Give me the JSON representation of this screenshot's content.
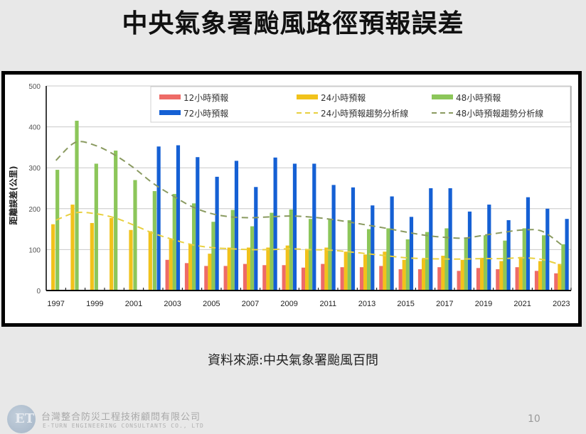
{
  "slide": {
    "title": "中央氣象署颱風路徑預報誤差",
    "source": "資料來源:中央氣象署颱風百問",
    "company_cn": "台灣整合防災工程技術顧問有限公司",
    "company_en": "E-TURN ENGINEERING CONSULTANTS CO., LTD",
    "page_number": "10",
    "logo_icon": "company-logo-icon"
  },
  "colors": {
    "h12": "#ee6b67",
    "h24": "#f1c21b",
    "h48": "#8cc65a",
    "h72": "#1560d4",
    "trend24": "#e8d040",
    "trend48": "#8a9a60"
  },
  "chart_data": {
    "type": "bar",
    "title": "",
    "xlabel": "",
    "ylabel": "距離誤差(公里)",
    "ylim": [
      0,
      500
    ],
    "yticks": [
      0,
      100,
      200,
      300,
      400,
      500
    ],
    "xtick_labels": [
      "1997",
      "1999",
      "2001",
      "2003",
      "2005",
      "2007",
      "2009",
      "2011",
      "2013",
      "2015",
      "2017",
      "2019",
      "2021",
      "2023"
    ],
    "grid": true,
    "legend_position": "top-right inside",
    "categories": [
      "1997",
      "1998",
      "1999",
      "2000",
      "2001",
      "2002",
      "2003",
      "2004",
      "2005",
      "2006",
      "2007",
      "2008",
      "2009",
      "2010",
      "2011",
      "2012",
      "2013",
      "2014",
      "2015",
      "2016",
      "2017",
      "2018",
      "2019",
      "2020",
      "2021",
      "2022",
      "2023"
    ],
    "series": [
      {
        "name": "12小時預報",
        "key": "h12",
        "type": "bar",
        "values": [
          null,
          null,
          null,
          null,
          null,
          null,
          75,
          67,
          60,
          60,
          65,
          62,
          62,
          56,
          65,
          57,
          57,
          60,
          52,
          52,
          57,
          48,
          55,
          52,
          57,
          48,
          42
        ]
      },
      {
        "name": "24小時預報",
        "key": "h24",
        "type": "bar",
        "values": [
          162,
          210,
          165,
          177,
          148,
          145,
          125,
          112,
          90,
          105,
          105,
          105,
          110,
          100,
          105,
          95,
          88,
          95,
          75,
          77,
          85,
          75,
          80,
          72,
          82,
          72,
          65
        ]
      },
      {
        "name": "48小時預報",
        "key": "h48",
        "type": "bar",
        "values": [
          295,
          415,
          310,
          342,
          270,
          243,
          236,
          213,
          168,
          197,
          157,
          190,
          198,
          175,
          175,
          172,
          150,
          152,
          125,
          143,
          152,
          128,
          135,
          122,
          152,
          135,
          113
        ]
      },
      {
        "name": "72小時預報",
        "key": "h72",
        "type": "bar",
        "values": [
          null,
          null,
          null,
          null,
          null,
          352,
          355,
          326,
          278,
          317,
          253,
          325,
          310,
          310,
          258,
          252,
          208,
          230,
          180,
          250,
          250,
          193,
          210,
          172,
          228,
          200,
          175
        ]
      },
      {
        "name": "24小時預報趨勢分析線",
        "key": "trend24",
        "type": "line-dashed",
        "values": [
          172,
          190,
          188,
          178,
          160,
          140,
          125,
          112,
          105,
          102,
          100,
          100,
          102,
          100,
          99,
          95,
          90,
          85,
          80,
          78,
          77,
          77,
          78,
          78,
          80,
          76,
          62
        ]
      },
      {
        "name": "48小時預報趨勢分析線",
        "key": "trend48",
        "type": "line-dashed",
        "values": [
          318,
          362,
          355,
          332,
          300,
          262,
          232,
          205,
          188,
          180,
          178,
          180,
          182,
          180,
          175,
          168,
          160,
          152,
          143,
          135,
          130,
          128,
          135,
          142,
          148,
          145,
          112
        ]
      }
    ]
  }
}
